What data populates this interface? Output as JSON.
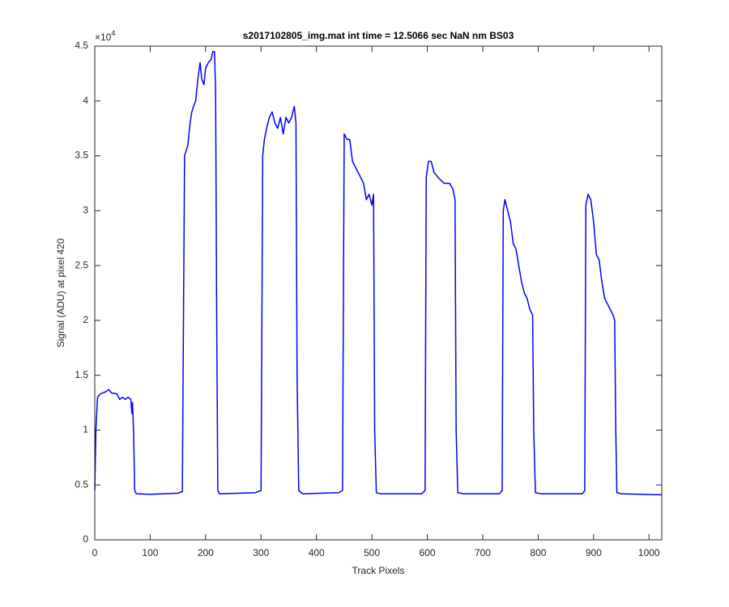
{
  "chart_data": {
    "type": "line",
    "title": "s2017102805_img.mat int time = 12.5066 sec  NaN nm BS03",
    "x_label": "Track Pixels",
    "y_label": "Signal (ADU) at pixel 420",
    "y_multiplier": {
      "base": "×10",
      "exponent": "4"
    },
    "xlim": [
      0,
      1023
    ],
    "ylim": [
      0,
      4.5
    ],
    "xticks": [
      0,
      100,
      200,
      300,
      400,
      500,
      600,
      700,
      800,
      900,
      1000
    ],
    "yticks": [
      0,
      0.5,
      1,
      1.5,
      2,
      2.5,
      3,
      3.5,
      4,
      4.5
    ],
    "grid": false,
    "series": [
      {
        "color": "#0000ff",
        "x": [
          0,
          2,
          5,
          10,
          20,
          25,
          30,
          40,
          45,
          50,
          55,
          60,
          65,
          67,
          68,
          70,
          72,
          75,
          100,
          150,
          158,
          162,
          165,
          168,
          172,
          175,
          178,
          182,
          186,
          190,
          193,
          197,
          200,
          205,
          210,
          213,
          216,
          218,
          220,
          222,
          225,
          290,
          300,
          303,
          306,
          310,
          315,
          320,
          325,
          330,
          335,
          340,
          345,
          350,
          355,
          360,
          363,
          365,
          368,
          375,
          440,
          447,
          450,
          455,
          460,
          465,
          470,
          475,
          480,
          485,
          490,
          495,
          500,
          503,
          505,
          508,
          515,
          590,
          596,
          598,
          602,
          607,
          612,
          620,
          630,
          640,
          646,
          650,
          652,
          655,
          665,
          730,
          735,
          737,
          740,
          745,
          750,
          755,
          760,
          765,
          770,
          775,
          780,
          785,
          790,
          792,
          795,
          805,
          880,
          884,
          886,
          890,
          895,
          900,
          905,
          910,
          915,
          920,
          925,
          930,
          935,
          938,
          940,
          942,
          950,
          1023
        ],
        "values": [
          0.45,
          1.0,
          1.3,
          1.33,
          1.35,
          1.37,
          1.34,
          1.33,
          1.28,
          1.3,
          1.28,
          1.3,
          1.28,
          1.15,
          1.25,
          1.0,
          0.45,
          0.42,
          0.415,
          0.425,
          0.44,
          3.5,
          3.55,
          3.6,
          3.8,
          3.9,
          3.95,
          4.0,
          4.2,
          4.35,
          4.2,
          4.15,
          4.3,
          4.35,
          4.38,
          4.45,
          4.45,
          4.1,
          2.0,
          0.45,
          0.42,
          0.43,
          0.45,
          3.5,
          3.65,
          3.75,
          3.85,
          3.9,
          3.8,
          3.75,
          3.85,
          3.7,
          3.85,
          3.8,
          3.85,
          3.95,
          3.8,
          1.5,
          0.45,
          0.42,
          0.43,
          0.45,
          3.7,
          3.65,
          3.65,
          3.45,
          3.4,
          3.35,
          3.3,
          3.25,
          3.1,
          3.15,
          3.05,
          3.15,
          1.0,
          0.43,
          0.42,
          0.42,
          0.45,
          3.3,
          3.45,
          3.45,
          3.35,
          3.3,
          3.25,
          3.25,
          3.2,
          3.1,
          1.0,
          0.43,
          0.42,
          0.42,
          0.45,
          3.0,
          3.1,
          3.0,
          2.9,
          2.7,
          2.65,
          2.5,
          2.35,
          2.25,
          2.2,
          2.1,
          2.05,
          1.0,
          0.43,
          0.42,
          0.42,
          0.45,
          3.05,
          3.15,
          3.1,
          2.9,
          2.6,
          2.55,
          2.35,
          2.2,
          2.15,
          2.1,
          2.05,
          2.0,
          1.0,
          0.43,
          0.42,
          0.41
        ]
      }
    ]
  }
}
